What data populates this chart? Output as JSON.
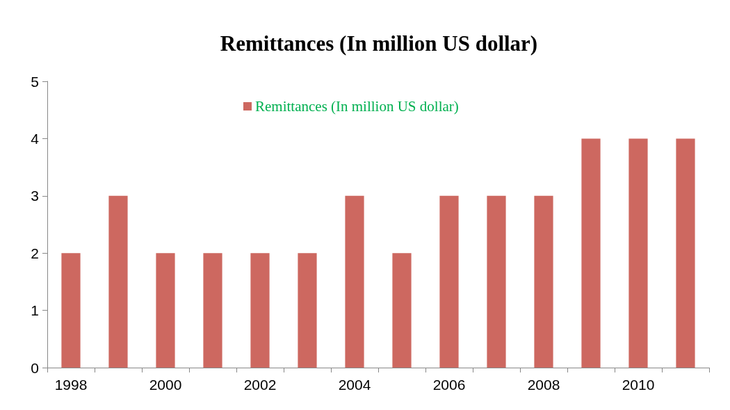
{
  "chart_data": {
    "type": "bar",
    "title": "Remittances (In million US dollar)",
    "categories": [
      "1998",
      null,
      "2000",
      null,
      "2002",
      null,
      "2004",
      null,
      "2006",
      null,
      "2008",
      null,
      "2010",
      null
    ],
    "series": [
      {
        "name": "Remittances (In million US dollar)",
        "color": "#cd6860",
        "values": [
          2,
          3,
          2,
          2,
          2,
          2,
          3,
          2,
          3,
          3,
          3,
          4,
          4,
          4
        ]
      }
    ],
    "ylim": [
      0,
      5
    ],
    "yticks": [
      0,
      1,
      2,
      3,
      4,
      5
    ],
    "grid": false,
    "legend": "top"
  }
}
